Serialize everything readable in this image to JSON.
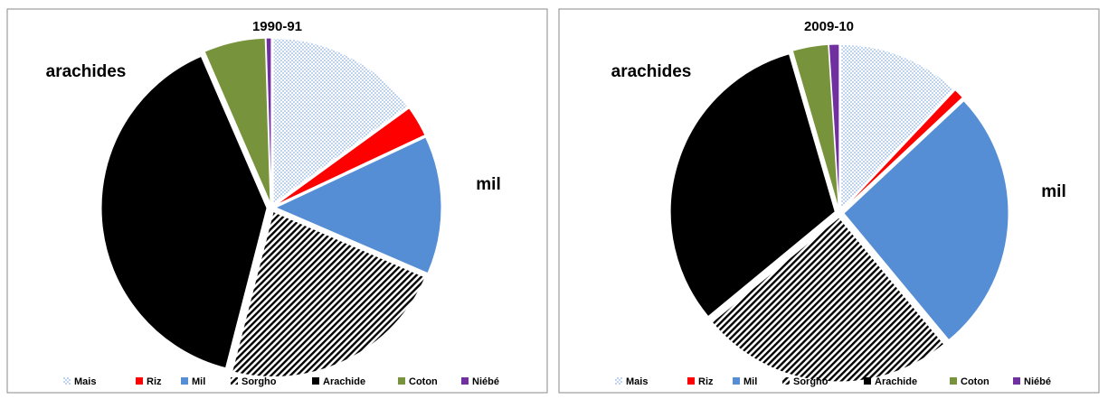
{
  "chart_data": [
    {
      "type": "pie",
      "title": "1990-91",
      "categories": [
        "Mais",
        "Riz",
        "Mil",
        "Sorgho",
        "Arachide",
        "Coton",
        "Niébé"
      ],
      "values": [
        15,
        3,
        13.5,
        22.5,
        39.5,
        6,
        0.5
      ],
      "colors": [
        "#8fb4e3",
        "#ff0000",
        "#558ed5",
        "#000000",
        "#000000",
        "#77933c",
        "#7030a0"
      ],
      "patterns": [
        "dots",
        "solid",
        "solid",
        "hatch",
        "solid",
        "solid",
        "solid"
      ],
      "annotations": [
        "arachides",
        "mil"
      ],
      "legend": "bottom"
    },
    {
      "type": "pie",
      "title": "2009-10",
      "categories": [
        "Mais",
        "Riz",
        "Mil",
        "Sorgho",
        "Arachide",
        "Coton",
        "Niébé"
      ],
      "values": [
        12,
        1,
        26,
        25,
        31.5,
        3.5,
        1
      ],
      "colors": [
        "#8fb4e3",
        "#ff0000",
        "#558ed5",
        "#000000",
        "#000000",
        "#77933c",
        "#7030a0"
      ],
      "patterns": [
        "dots",
        "solid",
        "solid",
        "hatch",
        "solid",
        "solid",
        "solid"
      ],
      "annotations": [
        "arachides",
        "mil"
      ],
      "legend": "bottom"
    }
  ]
}
